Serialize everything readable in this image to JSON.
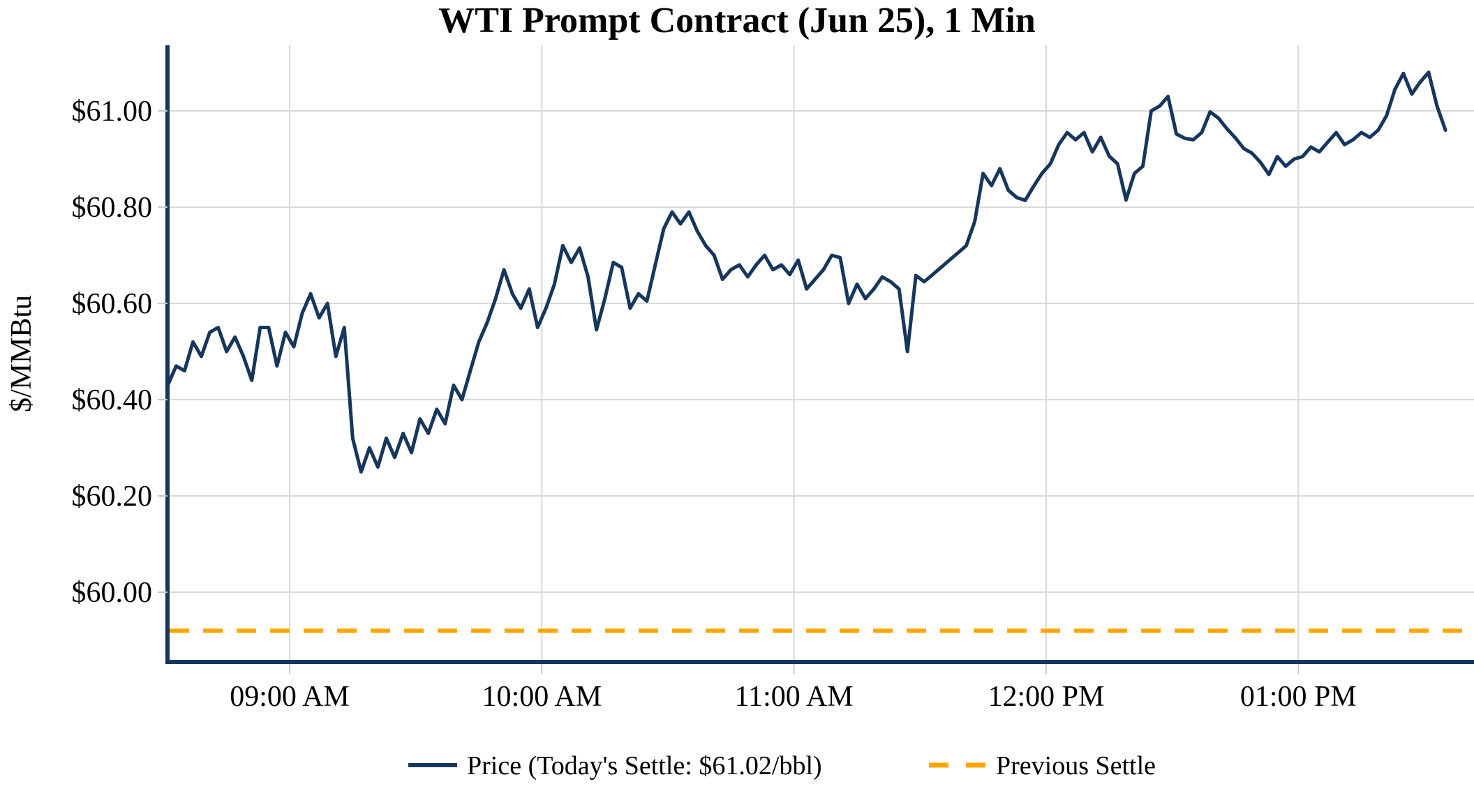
{
  "title": "WTI Prompt Contract (Jun 25), 1 Min",
  "y_axis": {
    "label": "$/MMBtu",
    "tick_labels": [
      "$61.00",
      "$60.80",
      "$60.60",
      "$60.40",
      "$60.20",
      "$60.00"
    ],
    "tick_values": [
      61.0,
      60.8,
      60.6,
      60.4,
      60.2,
      60.0
    ]
  },
  "x_axis": {
    "tick_labels": [
      "09:00 AM",
      "10:00 AM",
      "11:00 AM",
      "12:00 PM",
      "01:00 PM"
    ],
    "tick_minutes": [
      540,
      600,
      660,
      720,
      780
    ]
  },
  "legend": {
    "price_label": "Price (Today's Settle: $61.02/bbl)",
    "previous_settle_label": "Previous Settle"
  },
  "colors": {
    "price_line": "#17365D",
    "previous_settle_line": "#FFA500",
    "grid": "#D9D9D9",
    "tick": "#C8C8C8",
    "axis_spine": "#17365D",
    "text": "#000000",
    "background": "#FFFFFF"
  },
  "chart_data": {
    "type": "line",
    "title": "WTI Prompt Contract (Jun 25), 1 Min",
    "ylabel": "$/MMBtu",
    "ylim": [
      59.85,
      61.14
    ],
    "grid": true,
    "legend_position": "bottom",
    "x_start_time": "08:31 AM",
    "x_end_time": "01:35 PM",
    "x_start_minutes_after_midnight": 511,
    "x_interval_minutes": 2,
    "x_tick_labels": [
      "09:00 AM",
      "10:00 AM",
      "11:00 AM",
      "12:00 PM",
      "01:00 PM"
    ],
    "x_tick_minutes_after_midnight": [
      540,
      600,
      660,
      720,
      780
    ],
    "todays_settle": 61.02,
    "series": [
      {
        "name": "Price (Today's Settle: $61.02/bbl)",
        "type": "line",
        "color": "#17365D",
        "values": [
          60.43,
          60.47,
          60.46,
          60.52,
          60.49,
          60.54,
          60.55,
          60.5,
          60.53,
          60.49,
          60.44,
          60.55,
          60.55,
          60.47,
          60.54,
          60.51,
          60.58,
          60.62,
          60.57,
          60.6,
          60.49,
          60.55,
          60.32,
          60.25,
          60.3,
          60.26,
          60.32,
          60.28,
          60.33,
          60.29,
          60.36,
          60.33,
          60.38,
          60.35,
          60.43,
          60.4,
          60.46,
          60.52,
          60.56,
          60.61,
          60.67,
          60.62,
          60.59,
          60.63,
          60.55,
          60.59,
          60.64,
          60.72,
          60.685,
          60.715,
          60.655,
          60.545,
          60.61,
          60.685,
          60.675,
          60.59,
          60.62,
          60.605,
          60.68,
          60.755,
          60.79,
          60.765,
          60.79,
          60.75,
          60.72,
          60.7,
          60.65,
          60.67,
          60.68,
          60.655,
          60.68,
          60.7,
          60.67,
          60.68,
          60.66,
          60.69,
          60.63,
          60.65,
          60.67,
          60.7,
          60.695,
          60.6,
          60.64,
          60.61,
          60.63,
          60.655,
          60.645,
          60.63,
          60.5,
          60.658,
          60.645,
          60.66,
          60.675,
          60.69,
          60.705,
          60.72,
          60.77,
          60.87,
          60.845,
          60.88,
          60.835,
          60.82,
          60.814,
          60.843,
          60.87,
          60.89,
          60.93,
          60.955,
          60.94,
          60.955,
          60.915,
          60.945,
          60.906,
          60.89,
          60.815,
          60.87,
          60.885,
          61.0,
          61.01,
          61.03,
          60.952,
          60.943,
          60.94,
          60.955,
          60.998,
          60.985,
          60.963,
          60.944,
          60.922,
          60.912,
          60.893,
          60.868,
          60.905,
          60.885,
          60.9,
          60.905,
          60.925,
          60.915,
          60.935,
          60.955,
          60.93,
          60.94,
          60.955,
          60.945,
          60.96,
          60.99,
          61.045,
          61.078,
          61.035,
          61.06,
          61.08,
          61.01,
          60.96
        ]
      },
      {
        "name": "Previous Settle",
        "type": "hline",
        "style": "dashed",
        "color": "#FFA500",
        "value": 59.92
      }
    ]
  }
}
